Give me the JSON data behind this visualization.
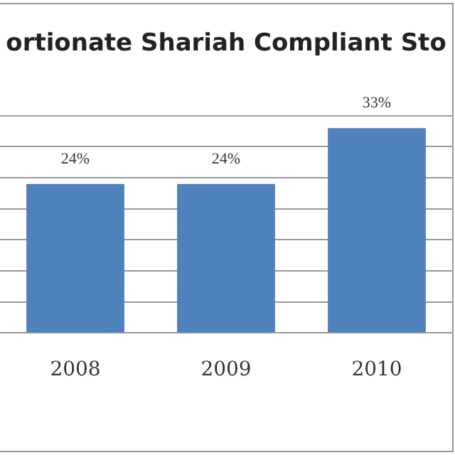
{
  "chart_data": {
    "type": "bar",
    "title": "ortionate Shariah Compliant Sto",
    "categories": [
      "2008",
      "2009",
      "2010"
    ],
    "values": [
      24,
      24,
      33
    ],
    "color": "#4f81bd",
    "value_labels": [
      "24%",
      "24%",
      "33%"
    ],
    "ylim": [
      0,
      35
    ],
    "yticks": [
      {
        "value": 0,
        "label": null
      },
      {
        "value": 5,
        "label": null
      },
      {
        "value": 10,
        "label": null
      },
      {
        "value": 15,
        "label": null
      },
      {
        "value": 20,
        "label": null
      },
      {
        "value": 25,
        "label": null
      },
      {
        "value": 30,
        "label": null
      },
      {
        "value": 35,
        "label": null
      }
    ],
    "tick_labels": "x",
    "grid": "y",
    "legend": false
  }
}
